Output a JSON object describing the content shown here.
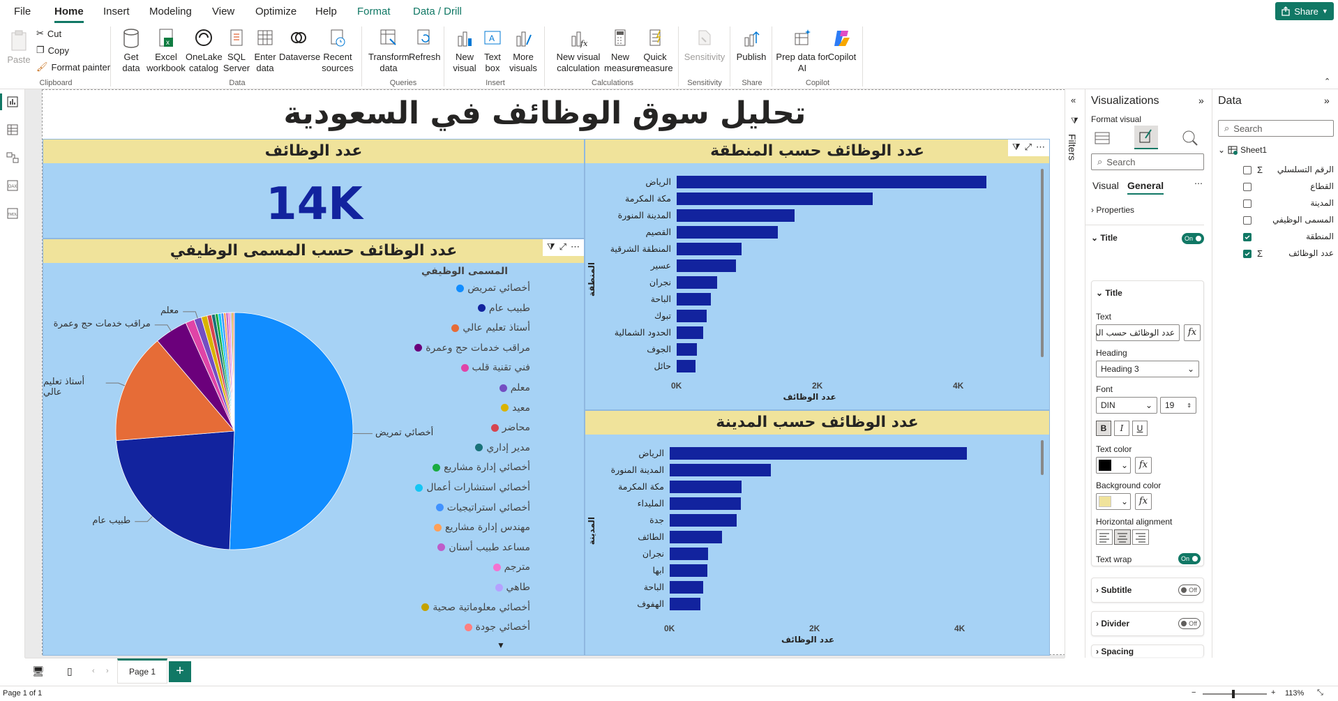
{
  "menu": {
    "items": [
      "File",
      "Home",
      "Insert",
      "Modeling",
      "View",
      "Optimize",
      "Help",
      "Format",
      "Data / Drill"
    ],
    "share_label": "Share"
  },
  "ribbon": {
    "clipboard": {
      "paste": "Paste",
      "cut": "Cut",
      "copy": "Copy",
      "format_painter": "Format painter",
      "group": "Clipboard"
    },
    "data": {
      "get_data": "Get data",
      "excel": "Excel workbook",
      "onelake": "OneLake catalog",
      "sql": "SQL Server",
      "enter": "Enter data",
      "dataverse": "Dataverse",
      "recent": "Recent sources",
      "group": "Data"
    },
    "queries": {
      "transform": "Transform data",
      "refresh": "Refresh",
      "group": "Queries"
    },
    "insert": {
      "new_visual": "New visual",
      "text_box": "Text box",
      "more_visuals": "More visuals",
      "group": "Insert"
    },
    "calculations": {
      "new_visual_calc": "New visual calculation",
      "new_measure": "New measure",
      "quick_measure": "Quick measure",
      "group": "Calculations"
    },
    "sensitivity": {
      "label": "Sensitivity",
      "group": "Sensitivity"
    },
    "share": {
      "publish": "Publish",
      "group": "Share"
    },
    "copilot": {
      "prep": "Prep data for AI",
      "copilot": "Copilot",
      "group": "Copilot"
    }
  },
  "report": {
    "title": "تحليل سوق الوظائف في السعودية",
    "card": {
      "title": "عدد الوظائف",
      "value": "14K"
    }
  },
  "chart_data": [
    {
      "type": "bar",
      "title": "عدد الوظائف حسب المنطقة",
      "categories": [
        "الرياض",
        "مكة المكرمة",
        "المدينة المنورة",
        "القصيم",
        "المنطقة الشرقية",
        "عسير",
        "نجران",
        "الباحة",
        "تبوك",
        "الحدود الشمالية",
        "الجوف",
        "حائل"
      ],
      "values": [
        4400,
        2780,
        1670,
        1440,
        920,
        840,
        570,
        490,
        430,
        380,
        290,
        270
      ],
      "xlabel": "عدد الوظائف",
      "ylabel": "المنطقة",
      "xticks": [
        "0K",
        "2K",
        "4K"
      ],
      "xlim": [
        0,
        5000
      ]
    },
    {
      "type": "bar",
      "title": "عدد الوظائف حسب المدينة",
      "categories": [
        "الرياض",
        "المدينة المنورة",
        "مكة المكرمة",
        "المليداء",
        "جدة",
        "الطائف",
        "نجران",
        "ابها",
        "الباحة",
        "الهفوف"
      ],
      "values": [
        4100,
        1390,
        990,
        980,
        920,
        720,
        530,
        520,
        460,
        420
      ],
      "xlabel": "عدد الوظائف",
      "ylabel": "المدينة",
      "xticks": [
        "0K",
        "2K",
        "4K"
      ],
      "xlim": [
        0,
        5000
      ]
    },
    {
      "type": "pie",
      "title": "عدد الوظائف حسب المسمى الوظيفي",
      "legend_title": "المسمى الوظيفي",
      "labels": [
        "أخصائي تمريض",
        "طبيب عام",
        "أستاذ تعليم عالي",
        "مراقب خدمات حج وعمرة",
        "فني تقنية قلب",
        "معلم",
        "معيد",
        "محاضر",
        "مدير إداري",
        "أخصائي إدارة مشاريع",
        "أخصائي استشارات أعمال",
        "أخصائي استراتيجيات",
        "مهندس إدارة مشاريع",
        "مساعد طبيب أسنان",
        "مترجم",
        "طاهي",
        "أخصائي معلوماتية صحية",
        "أخصائي جودة"
      ],
      "values": [
        50.5,
        23.0,
        15.0,
        4.5,
        1.2,
        1.0,
        0.8,
        0.6,
        0.5,
        0.4,
        0.4,
        0.35,
        0.3,
        0.3,
        0.25,
        0.2,
        0.2,
        0.2
      ],
      "colors": [
        "#118dff",
        "#12239e",
        "#e66c37",
        "#6b007b",
        "#e044a7",
        "#744ec2",
        "#d9b300",
        "#d64550",
        "#197278",
        "#1aab40",
        "#15c6f4",
        "#4092ff",
        "#ffa058",
        "#be5dc9",
        "#f472d0",
        "#b5a1ff",
        "#c4a200",
        "#ff8080"
      ],
      "slice_labels_shown": [
        "أخصائي تمريض",
        "طبيب عام",
        "أستاذ تعليم عالي",
        "مراقب خدمات حج وعمرة",
        "معلم"
      ]
    }
  ],
  "filters_pane": {
    "label": "Filters"
  },
  "visualizations": {
    "title": "Visualizations",
    "format_visual": "Format visual",
    "search_placeholder": "Search",
    "tab_visual": "Visual",
    "tab_general": "General",
    "properties": "Properties",
    "title_section": "Title",
    "title_toggle": "On",
    "title_sub": "Title",
    "text_label": "Text",
    "text_value": "عدد الوظائف حسب المنطقة",
    "heading_label": "Heading",
    "heading_value": "Heading 3",
    "font_label": "Font",
    "font_value": "DIN",
    "font_size": "19",
    "bold": "B",
    "italic": "I",
    "underline": "U",
    "text_color": "Text color",
    "bg_color": "Background color",
    "halign": "Horizontal alignment",
    "text_wrap": "Text wrap",
    "text_wrap_toggle": "On",
    "subtitle": "Subtitle",
    "subtitle_toggle": "Off",
    "divider": "Divider",
    "divider_toggle": "Off",
    "spacing": "Spacing",
    "colors": {
      "text": "#000000",
      "background": "#f0e39b"
    }
  },
  "data_pane": {
    "title": "Data",
    "search_placeholder": "Search",
    "table": "Sheet1",
    "fields": [
      {
        "name": "الرقم التسلسلي",
        "sigma": true,
        "checked": false
      },
      {
        "name": "القطاع",
        "sigma": false,
        "checked": false
      },
      {
        "name": "المدينة",
        "sigma": false,
        "checked": false
      },
      {
        "name": "المسمى الوظيفي",
        "sigma": false,
        "checked": false
      },
      {
        "name": "المنطقة",
        "sigma": false,
        "checked": true
      },
      {
        "name": "عدد الوظائف",
        "sigma": true,
        "checked": true
      }
    ]
  },
  "pages": {
    "tab": "Page 1",
    "add": "+"
  },
  "status": {
    "page": "Page 1 of 1",
    "zoom": "113%"
  }
}
